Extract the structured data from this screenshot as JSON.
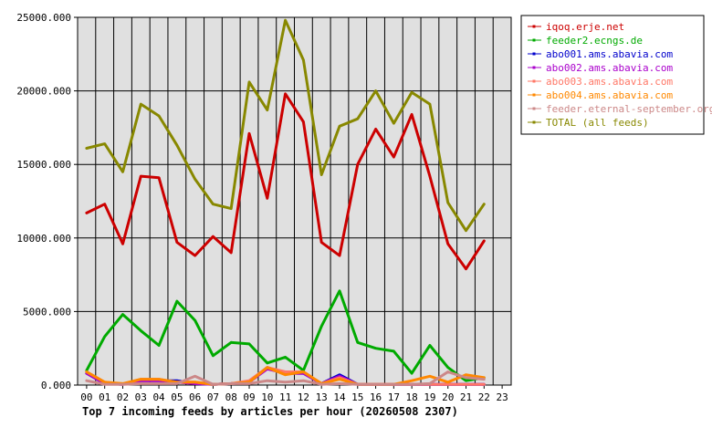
{
  "chart_data": {
    "type": "line",
    "title": "Top 7 incoming feeds by articles per hour (20260508 2307)",
    "xlabel": "",
    "ylabel": "",
    "categories": [
      "00",
      "01",
      "02",
      "03",
      "04",
      "05",
      "06",
      "07",
      "08",
      "09",
      "10",
      "11",
      "12",
      "13",
      "14",
      "15",
      "16",
      "17",
      "18",
      "19",
      "20",
      "21",
      "22",
      "23"
    ],
    "y_ticks": [
      "0.000",
      "5000.000",
      "10000.000",
      "15000.000",
      "20000.000",
      "25000.000"
    ],
    "ylim": [
      0,
      25000
    ],
    "grid": true,
    "legend_position": "top-right",
    "series": [
      {
        "name": "iqoq.erje.net",
        "color": "#cc0000",
        "values": [
          11700,
          12300,
          9600,
          14200,
          14100,
          9700,
          8800,
          10100,
          9000,
          17100,
          12700,
          19800,
          17900,
          9700,
          8800,
          15000,
          17400,
          15500,
          18400,
          14200,
          9600,
          7900,
          9800,
          null
        ]
      },
      {
        "name": "feeder2.ecngs.de",
        "color": "#00aa00",
        "values": [
          1000,
          3300,
          4800,
          3700,
          2700,
          5700,
          4400,
          2000,
          2900,
          2800,
          1500,
          1900,
          1000,
          4000,
          6400,
          2900,
          2500,
          2300,
          800,
          2700,
          1200,
          300,
          500,
          null
        ]
      },
      {
        "name": "abo001.ams.abavia.com",
        "color": "#0000cc",
        "values": [
          800,
          100,
          50,
          300,
          300,
          300,
          100,
          50,
          100,
          200,
          1200,
          800,
          800,
          100,
          700,
          50,
          50,
          50,
          50,
          50,
          50,
          50,
          50,
          null
        ]
      },
      {
        "name": "abo002.ams.abavia.com",
        "color": "#aa00cc",
        "values": [
          800,
          100,
          50,
          300,
          300,
          200,
          100,
          50,
          100,
          200,
          1100,
          800,
          800,
          100,
          600,
          50,
          50,
          50,
          50,
          50,
          50,
          50,
          50,
          null
        ]
      },
      {
        "name": "abo003.ams.abavia.com",
        "color": "#ff7766",
        "values": [
          900,
          200,
          50,
          400,
          400,
          200,
          200,
          50,
          100,
          300,
          1200,
          900,
          900,
          100,
          500,
          50,
          50,
          50,
          50,
          50,
          50,
          50,
          50,
          null
        ]
      },
      {
        "name": "abo004.ams.abavia.com",
        "color": "#ff8800",
        "values": [
          900,
          200,
          100,
          400,
          400,
          200,
          200,
          50,
          100,
          200,
          1200,
          700,
          900,
          100,
          400,
          50,
          50,
          50,
          300,
          600,
          200,
          700,
          500,
          null
        ]
      },
      {
        "name": "feeder.eternal-september.org",
        "color": "#cc8888",
        "values": [
          300,
          50,
          50,
          100,
          100,
          100,
          600,
          50,
          100,
          100,
          300,
          200,
          300,
          50,
          100,
          50,
          50,
          50,
          50,
          100,
          900,
          500,
          400,
          null
        ]
      },
      {
        "name": "TOTAL (all feeds)",
        "color": "#888800",
        "values": [
          16100,
          16400,
          14500,
          19100,
          18300,
          16300,
          14000,
          12300,
          12000,
          20600,
          18700,
          24800,
          22100,
          14300,
          17600,
          18100,
          20000,
          17800,
          19900,
          19100,
          12400,
          10500,
          12300,
          null
        ]
      }
    ]
  }
}
